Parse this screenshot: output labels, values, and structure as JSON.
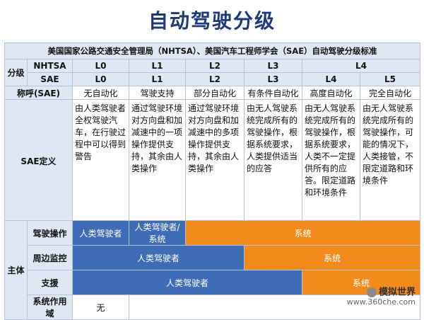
{
  "title": "自动驾驶分级",
  "standard_title": "美国国家公路交通安全管理局（NHTSA）、美国汽车工程师学会（SAE）自动驾驶分级标准",
  "row_labels": {
    "grading": "分级",
    "nhtsa": "NHTSA",
    "sae": "SAE",
    "name": "称呼(SAE)",
    "definition": "SAE定义",
    "subject": "主体",
    "driving_op": "驾驶操作",
    "monitoring": "周边监控",
    "support": "支援",
    "scope": "系统作用域"
  },
  "nhtsa_levels": [
    "L0",
    "L1",
    "L2",
    "L3",
    "L4"
  ],
  "sae_levels": [
    "L0",
    "L1",
    "L2",
    "L3",
    "L4",
    "L5"
  ],
  "names": [
    "无自动化",
    "驾驶支持",
    "部分自动化",
    "有条件自动化",
    "高度自动化",
    "完全自动化"
  ],
  "definitions": [
    "由人类驾驶者全权驾驶汽车，在行驶过程中可以得到警告",
    "通过驾驶环境对方向盘和加减速中的一项操作提供支持，其余由人类操作",
    "通过驾驶环境对方向盘和加减速中的多项操作提供支持，其余由人类操作",
    "由无人驾驶系统完成所有的驾驶操作，根据系统要求，人类提供适当的应答",
    "由无人驾驶系统完成所有的驾驶操作，根据系统要求，人类不一定提供所有的应答。限定道路和环境条件",
    "由无人驾驶系统完成所有的驾驶操作，可能的情况下，人类接管，不限定道路和环境条件"
  ],
  "driving_op": {
    "human": "人类驾驶者",
    "human_system": "人类驾驶者/系统",
    "system": "系统"
  },
  "monitoring": {
    "human": "人类驾驶者",
    "system": "系统"
  },
  "support": {
    "human": "人类驾驶者",
    "system": "系统"
  },
  "scope": {
    "none": "无"
  },
  "watermark": {
    "name": "模拟世界",
    "url": "www.360che.com"
  },
  "colors": {
    "title": "#1f3a7a",
    "header_bg": "#dfe7f3",
    "human": "#3e6db5",
    "system": "#f38b1c"
  }
}
